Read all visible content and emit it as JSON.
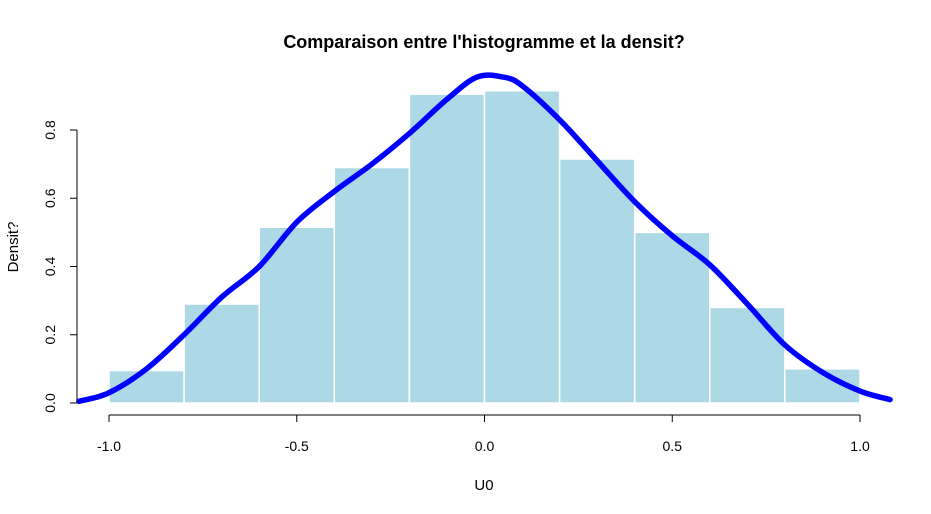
{
  "chart_data": {
    "type": "bar",
    "subtype": "histogram-with-density",
    "title": "Comparaison entre l'histogramme et la densit?",
    "xlabel": "U0",
    "ylabel": "Densit?",
    "xlim": [
      -1.08,
      1.08
    ],
    "ylim": [
      0,
      0.95
    ],
    "x_ticks": [
      -1.0,
      -0.5,
      0.0,
      0.5,
      1.0
    ],
    "x_tick_labels": [
      "-1.0",
      "-0.5",
      "0.0",
      "0.5",
      "1.0"
    ],
    "y_ticks": [
      0.0,
      0.2,
      0.4,
      0.6,
      0.8
    ],
    "y_tick_labels": [
      "0.0",
      "0.2",
      "0.4",
      "0.6",
      "0.8"
    ],
    "grid": false,
    "bins": [
      {
        "x0": -1.0,
        "x1": -0.8,
        "value": 0.095
      },
      {
        "x0": -0.8,
        "x1": -0.6,
        "value": 0.29
      },
      {
        "x0": -0.6,
        "x1": -0.4,
        "value": 0.515
      },
      {
        "x0": -0.4,
        "x1": -0.2,
        "value": 0.69
      },
      {
        "x0": -0.2,
        "x1": 0.0,
        "value": 0.905
      },
      {
        "x0": 0.0,
        "x1": 0.2,
        "value": 0.915
      },
      {
        "x0": 0.2,
        "x1": 0.4,
        "value": 0.715
      },
      {
        "x0": 0.4,
        "x1": 0.6,
        "value": 0.5
      },
      {
        "x0": 0.6,
        "x1": 0.8,
        "value": 0.28
      },
      {
        "x0": 0.8,
        "x1": 1.0,
        "value": 0.1
      }
    ],
    "density_curve": {
      "x": [
        -1.08,
        -1.0,
        -0.9,
        -0.8,
        -0.7,
        -0.6,
        -0.5,
        -0.4,
        -0.3,
        -0.2,
        -0.1,
        -0.02,
        0.05,
        0.1,
        0.2,
        0.3,
        0.4,
        0.5,
        0.6,
        0.7,
        0.8,
        0.9,
        1.0,
        1.08
      ],
      "y": [
        0.005,
        0.03,
        0.1,
        0.2,
        0.31,
        0.4,
        0.53,
        0.62,
        0.7,
        0.79,
        0.89,
        0.955,
        0.955,
        0.93,
        0.83,
        0.71,
        0.59,
        0.49,
        0.405,
        0.29,
        0.17,
        0.09,
        0.035,
        0.01
      ]
    },
    "colors": {
      "bars": "#add8e6",
      "bar_border": "#ffffff",
      "density": "#0000ff"
    }
  }
}
